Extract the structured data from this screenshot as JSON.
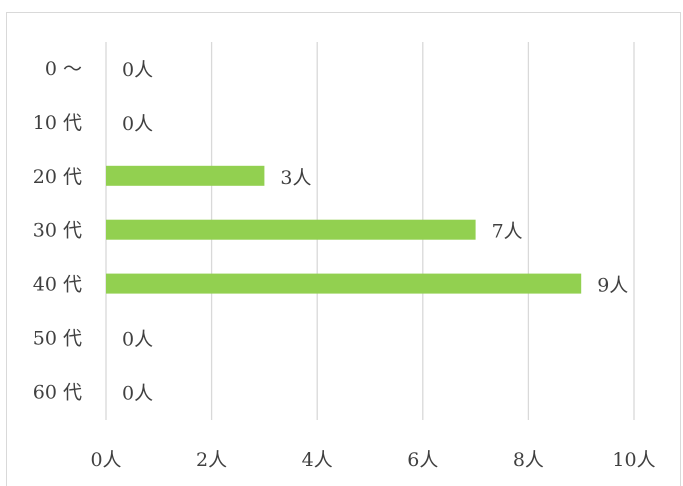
{
  "chart_data": {
    "type": "bar",
    "orientation": "horizontal",
    "categories": [
      "0～",
      "10代",
      "20代",
      "30代",
      "40代",
      "50代",
      "60代"
    ],
    "category_labels": [
      "0 ～",
      "10 代",
      "20 代",
      "30 代",
      "40 代",
      "50 代",
      "60 代"
    ],
    "values": [
      0,
      0,
      3,
      7,
      9,
      0,
      0
    ],
    "data_labels": [
      "0人",
      "0人",
      "3人",
      "7人",
      "9人",
      "0人",
      "0人"
    ],
    "xlim": [
      0,
      10
    ],
    "x_ticks": [
      0,
      2,
      4,
      6,
      8,
      10
    ],
    "x_tick_labels": [
      "0人",
      "2人",
      "4人",
      "6人",
      "8人",
      "10人"
    ],
    "grid": true,
    "legend": false,
    "title": "",
    "xlabel": "",
    "ylabel": "",
    "bar_color": "#92d050",
    "grid_color": "#d9d9d9",
    "text_color": "#404040"
  }
}
